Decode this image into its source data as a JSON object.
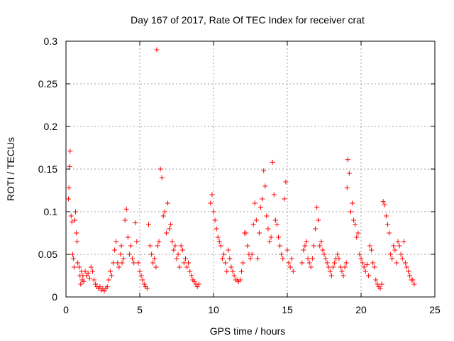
{
  "chart_data": {
    "type": "scatter",
    "title": "Day 167 of 2017, Rate Of TEC Index for receiver crat",
    "xlabel": "GPS time / hours",
    "ylabel": "ROTI / TECUs",
    "xlim": [
      0,
      25
    ],
    "ylim": [
      0,
      0.3
    ],
    "xticks": [
      0,
      5,
      10,
      15,
      20,
      25
    ],
    "xtick_labels": [
      "0",
      "5",
      "10",
      "15",
      "20",
      "25"
    ],
    "yticks": [
      0,
      0.05,
      0.1,
      0.15,
      0.2,
      0.25,
      0.3
    ],
    "ytick_labels": [
      "0",
      "0.05",
      "0.1",
      "0.15",
      "0.2",
      "0.25",
      "0.3"
    ],
    "grid": true,
    "marker": "+",
    "color": "#ff0000",
    "series": [
      {
        "name": "ROTI",
        "x": [
          0.17,
          0.2,
          0.25,
          0.28,
          0.35,
          0.4,
          0.45,
          0.5,
          0.55,
          0.6,
          0.65,
          0.7,
          0.75,
          0.8,
          0.9,
          0.95,
          1.0,
          1.05,
          1.1,
          1.15,
          1.2,
          1.3,
          1.4,
          1.5,
          1.6,
          1.7,
          1.8,
          1.9,
          2.0,
          2.1,
          2.2,
          2.3,
          2.4,
          2.5,
          2.6,
          2.7,
          2.8,
          2.9,
          3.0,
          3.1,
          3.2,
          3.3,
          3.4,
          3.5,
          3.6,
          3.7,
          3.75,
          3.8,
          3.9,
          4.0,
          4.1,
          4.2,
          4.3,
          4.4,
          4.5,
          4.6,
          4.7,
          4.8,
          4.9,
          5.0,
          5.1,
          5.2,
          5.3,
          5.4,
          5.5,
          5.6,
          5.7,
          5.8,
          5.9,
          6.0,
          6.1,
          6.15,
          6.2,
          6.3,
          6.4,
          6.5,
          6.6,
          6.7,
          6.8,
          6.9,
          7.0,
          7.1,
          7.2,
          7.3,
          7.4,
          7.5,
          7.6,
          7.7,
          7.8,
          7.9,
          8.0,
          8.1,
          8.2,
          8.3,
          8.4,
          8.5,
          8.6,
          8.7,
          8.8,
          8.9,
          9.0,
          9.8,
          9.9,
          10.0,
          10.1,
          10.2,
          10.3,
          10.4,
          10.5,
          10.6,
          10.7,
          10.8,
          10.9,
          11.0,
          11.1,
          11.2,
          11.3,
          11.4,
          11.5,
          11.6,
          11.7,
          11.8,
          11.9,
          12.0,
          12.1,
          12.2,
          12.3,
          12.4,
          12.5,
          12.6,
          12.7,
          12.8,
          12.9,
          13.0,
          13.1,
          13.2,
          13.3,
          13.4,
          13.5,
          13.6,
          13.7,
          13.8,
          13.9,
          14.0,
          14.1,
          14.2,
          14.3,
          14.4,
          14.5,
          14.6,
          14.7,
          14.8,
          14.9,
          15.0,
          15.1,
          15.2,
          15.3,
          15.4,
          16.0,
          16.1,
          16.2,
          16.3,
          16.4,
          16.5,
          16.6,
          16.7,
          16.8,
          16.9,
          17.0,
          17.1,
          17.2,
          17.3,
          17.4,
          17.5,
          17.6,
          17.7,
          17.8,
          17.9,
          18.0,
          18.1,
          18.2,
          18.3,
          18.4,
          18.5,
          18.6,
          18.7,
          18.8,
          18.9,
          19.0,
          19.05,
          19.1,
          19.2,
          19.3,
          19.4,
          19.5,
          19.6,
          19.7,
          19.8,
          19.9,
          20.0,
          20.1,
          20.2,
          20.3,
          20.4,
          20.5,
          20.6,
          20.7,
          20.8,
          20.9,
          21.0,
          21.1,
          21.2,
          21.3,
          21.4,
          21.5,
          21.6,
          21.7,
          21.8,
          21.9,
          22.0,
          22.1,
          22.2,
          22.3,
          22.4,
          22.5,
          22.6,
          22.7,
          22.8,
          22.9,
          23.0,
          23.1,
          23.2,
          23.3,
          23.4,
          23.5,
          23.6
        ],
        "y": [
          0.115,
          0.128,
          0.153,
          0.171,
          0.095,
          0.088,
          0.05,
          0.045,
          0.035,
          0.09,
          0.1,
          0.075,
          0.065,
          0.04,
          0.035,
          0.025,
          0.015,
          0.03,
          0.02,
          0.025,
          0.018,
          0.03,
          0.025,
          0.028,
          0.022,
          0.035,
          0.03,
          0.02,
          0.015,
          0.012,
          0.01,
          0.012,
          0.008,
          0.01,
          0.007,
          0.01,
          0.012,
          0.02,
          0.03,
          0.025,
          0.04,
          0.055,
          0.065,
          0.04,
          0.035,
          0.05,
          0.06,
          0.04,
          0.045,
          0.09,
          0.103,
          0.07,
          0.05,
          0.06,
          0.045,
          0.04,
          0.087,
          0.065,
          0.04,
          0.03,
          0.025,
          0.02,
          0.015,
          0.012,
          0.01,
          0.085,
          0.06,
          0.05,
          0.04,
          0.045,
          0.035,
          0.29,
          0.06,
          0.065,
          0.15,
          0.14,
          0.095,
          0.1,
          0.075,
          0.11,
          0.08,
          0.085,
          0.065,
          0.055,
          0.06,
          0.045,
          0.05,
          0.035,
          0.06,
          0.055,
          0.04,
          0.045,
          0.035,
          0.04,
          0.03,
          0.025,
          0.02,
          0.018,
          0.015,
          0.012,
          0.015,
          0.11,
          0.12,
          0.1,
          0.09,
          0.08,
          0.07,
          0.065,
          0.06,
          0.045,
          0.05,
          0.04,
          0.03,
          0.055,
          0.045,
          0.035,
          0.03,
          0.025,
          0.02,
          0.02,
          0.018,
          0.02,
          0.03,
          0.04,
          0.075,
          0.075,
          0.06,
          0.05,
          0.045,
          0.05,
          0.085,
          0.11,
          0.09,
          0.045,
          0.075,
          0.105,
          0.115,
          0.148,
          0.13,
          0.095,
          0.08,
          0.065,
          0.07,
          0.158,
          0.12,
          0.09,
          0.085,
          0.07,
          0.06,
          0.05,
          0.045,
          0.115,
          0.135,
          0.055,
          0.04,
          0.035,
          0.045,
          0.03,
          0.04,
          0.055,
          0.06,
          0.065,
          0.045,
          0.04,
          0.035,
          0.045,
          0.06,
          0.08,
          0.105,
          0.09,
          0.06,
          0.065,
          0.055,
          0.05,
          0.045,
          0.04,
          0.035,
          0.03,
          0.025,
          0.035,
          0.04,
          0.045,
          0.05,
          0.045,
          0.035,
          0.03,
          0.025,
          0.035,
          0.04,
          0.128,
          0.161,
          0.145,
          0.1,
          0.11,
          0.09,
          0.085,
          0.07,
          0.075,
          0.05,
          0.045,
          0.04,
          0.035,
          0.03,
          0.038,
          0.025,
          0.06,
          0.055,
          0.04,
          0.035,
          0.02,
          0.015,
          0.012,
          0.01,
          0.015,
          0.112,
          0.108,
          0.095,
          0.085,
          0.075,
          0.05,
          0.045,
          0.06,
          0.055,
          0.04,
          0.065,
          0.06,
          0.05,
          0.045,
          0.065,
          0.04,
          0.035,
          0.03,
          0.025,
          0.02,
          0.02,
          0.015
        ]
      }
    ]
  }
}
